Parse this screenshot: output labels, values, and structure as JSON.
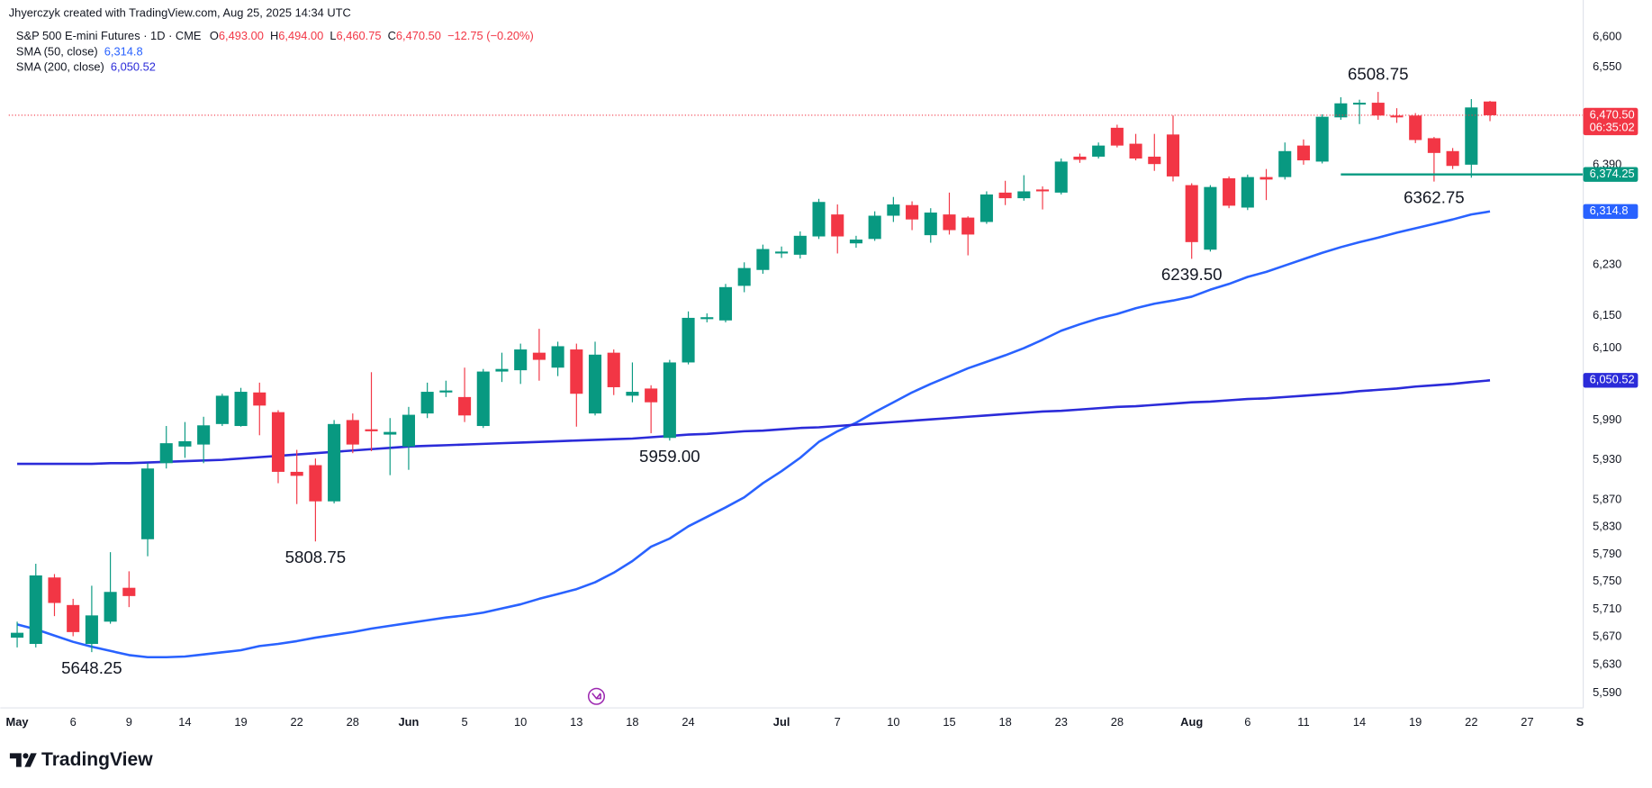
{
  "header": {
    "credit": "Jhyerczyk created with TradingView.com, Aug 25, 2025 14:34 UTC",
    "symbol": "S&P 500 E-mini Futures · 1D · CME",
    "ohlc": [
      {
        "key": "O",
        "value": "6,493.00"
      },
      {
        "key": "H",
        "value": "6,494.00"
      },
      {
        "key": "L",
        "value": "6,460.75"
      },
      {
        "key": "C",
        "value": "6,470.50"
      }
    ],
    "change": "−12.75 (−0.20%)"
  },
  "chart_data": {
    "type": "candlestick",
    "log": true,
    "grid": false,
    "up_color": "#089981",
    "down_color": "#f23645",
    "xlim": [
      -0.45,
      84
    ],
    "ylim": [
      5572,
      6662
    ],
    "xticks": [
      {
        "value": 0,
        "label": "May"
      },
      {
        "value": 3,
        "label": "6"
      },
      {
        "value": 6,
        "label": "9"
      },
      {
        "value": 9,
        "label": "14"
      },
      {
        "value": 12,
        "label": "19"
      },
      {
        "value": 15,
        "label": "22"
      },
      {
        "value": 18,
        "label": "28"
      },
      {
        "value": 21,
        "label": "Jun"
      },
      {
        "value": 24,
        "label": "5"
      },
      {
        "value": 27,
        "label": "10"
      },
      {
        "value": 30,
        "label": "13"
      },
      {
        "value": 33,
        "label": "18"
      },
      {
        "value": 36,
        "label": "24"
      },
      {
        "value": 41,
        "label": "Jul"
      },
      {
        "value": 44,
        "label": "7"
      },
      {
        "value": 47,
        "label": "10"
      },
      {
        "value": 50,
        "label": "15"
      },
      {
        "value": 53,
        "label": "18"
      },
      {
        "value": 56,
        "label": "23"
      },
      {
        "value": 59,
        "label": "28"
      },
      {
        "value": 63,
        "label": "Aug"
      },
      {
        "value": 66,
        "label": "6"
      },
      {
        "value": 69,
        "label": "11"
      },
      {
        "value": 72,
        "label": "14"
      },
      {
        "value": 75,
        "label": "19"
      },
      {
        "value": 78,
        "label": "22"
      },
      {
        "value": 81,
        "label": "27"
      },
      {
        "value": 84,
        "label": "Se"
      }
    ],
    "yticks": [
      {
        "value": 6600,
        "label": "6,600"
      },
      {
        "value": 6550,
        "label": "6,550"
      },
      {
        "value": 6390,
        "label": "6,390"
      },
      {
        "value": 6230,
        "label": "6,230"
      },
      {
        "value": 6150,
        "label": "6,150"
      },
      {
        "value": 6100,
        "label": "6,100"
      },
      {
        "value": 5990,
        "label": "5,990"
      },
      {
        "value": 5930,
        "label": "5,930"
      },
      {
        "value": 5870,
        "label": "5,870"
      },
      {
        "value": 5830,
        "label": "5,830"
      },
      {
        "value": 5790,
        "label": "5,790"
      },
      {
        "value": 5750,
        "label": "5,750"
      },
      {
        "value": 5710,
        "label": "5,710"
      },
      {
        "value": 5670,
        "label": "5,670"
      },
      {
        "value": 5630,
        "label": "5,630"
      },
      {
        "value": 5590,
        "label": "5,590"
      }
    ],
    "open": [
      5669,
      5660,
      5756,
      5716,
      5660,
      5692,
      5741,
      5812,
      5925,
      5950,
      5953,
      5984,
      5981,
      6032,
      6002,
      5912,
      5922,
      5868,
      5990,
      5976,
      5968,
      5950,
      6000,
      6032,
      6025,
      5981,
      6064,
      6066,
      6093,
      6070,
      6098,
      6000,
      6093,
      6027,
      6038,
      5963,
      6078,
      6145,
      6143,
      6197,
      6222,
      6248,
      6246,
      6275,
      6310,
      6264,
      6271,
      6308,
      6325,
      6277,
      6310,
      6305,
      6298,
      6345,
      6336,
      6350,
      6345,
      6403,
      6403,
      6450,
      6424,
      6403,
      6439,
      6357,
      6254,
      6368,
      6321,
      6370,
      6370,
      6421,
      6395,
      6467,
      6488,
      6491,
      6470,
      6470,
      6433,
      6412,
      6390,
      6493
    ],
    "high": [
      5692,
      5776,
      5761,
      5725,
      5744,
      5793,
      5765,
      5925,
      5981,
      5987,
      5995,
      6030,
      6039,
      6047,
      6005,
      5945,
      5932,
      5990,
      6000,
      6063,
      5993,
      6010,
      6047,
      6050,
      6070,
      6068,
      6093,
      6107,
      6130,
      6110,
      6107,
      6110,
      6098,
      6078,
      6043,
      6082,
      6157,
      6154,
      6200,
      6234,
      6262,
      6259,
      6283,
      6335,
      6326,
      6276,
      6315,
      6338,
      6331,
      6320,
      6345,
      6307,
      6347,
      6364,
      6373,
      6355,
      6400,
      6408,
      6426,
      6455,
      6440,
      6440,
      6470,
      6360,
      6357,
      6371,
      6374,
      6383,
      6426,
      6431,
      6472,
      6500,
      6496,
      6508.75,
      6482,
      6474,
      6435,
      6417,
      6497,
      6494
    ],
    "low": [
      5655,
      5655,
      5700,
      5671,
      5648.25,
      5689,
      5713,
      5787,
      5917,
      5933,
      5925,
      5981,
      5980,
      5967,
      5895,
      5864,
      5808.75,
      5865,
      5940,
      5943,
      5907,
      5915,
      5993,
      6025,
      5987,
      5978,
      6048,
      6045,
      6050,
      6057,
      5980,
      5997,
      6028,
      6017,
      5970,
      5959,
      6075,
      6140,
      6140,
      6187,
      6216,
      6241,
      6240,
      6271,
      6248,
      6257,
      6268,
      6298,
      6285,
      6265,
      6278,
      6245,
      6295,
      6325,
      6332,
      6318,
      6342,
      6393,
      6400,
      6418,
      6397,
      6380,
      6363,
      6239.5,
      6251,
      6320,
      6317,
      6333,
      6366,
      6390,
      6392,
      6463,
      6456,
      6463,
      6458,
      6425,
      6362.75,
      6383,
      6369,
      6460.75
    ],
    "close": [
      5676,
      5759,
      5719,
      5677,
      5701,
      5735,
      5729,
      5917,
      5955,
      5958,
      5982,
      6027,
      6033,
      6012,
      5912,
      5906,
      5868,
      5984,
      5953,
      5973,
      5972,
      5998,
      6033,
      6035,
      5997,
      6064,
      6068,
      6098,
      6082,
      6103,
      6030,
      6090,
      6040,
      6033,
      6017,
      6078,
      6147,
      6148,
      6195,
      6225,
      6255,
      6251,
      6276,
      6330,
      6275,
      6270,
      6308,
      6326,
      6302,
      6313,
      6285,
      6278,
      6342,
      6336,
      6347,
      6347,
      6395,
      6398,
      6421,
      6421,
      6400,
      6391,
      6371,
      6266,
      6354,
      6324,
      6370,
      6366,
      6412,
      6397,
      6468,
      6490,
      6491,
      6470,
      6467,
      6430,
      6409,
      6388,
      6483.25,
      6470.5
    ],
    "series": [
      {
        "name": "SMA (50, close)",
        "color": "#2962ff",
        "last_label": "6,314.8",
        "values": [
          5688,
          5681,
          5672,
          5663,
          5656,
          5650,
          5644,
          5641,
          5641,
          5642,
          5645,
          5648,
          5651,
          5657,
          5660,
          5664,
          5669,
          5673,
          5677,
          5682,
          5686,
          5690,
          5694,
          5698,
          5701,
          5705,
          5711,
          5717,
          5725,
          5732,
          5739,
          5749,
          5763,
          5780,
          5801,
          5813,
          5831,
          5845,
          5859,
          5874,
          5895,
          5913,
          5933,
          5957,
          5973,
          5986,
          6002,
          6017,
          6032,
          6045,
          6057,
          6069,
          6079,
          6089,
          6100,
          6113,
          6127,
          6137,
          6146,
          6153,
          6162,
          6169,
          6174,
          6180,
          6191,
          6200,
          6211,
          6219,
          6229,
          6239,
          6249,
          6258,
          6266,
          6273,
          6281,
          6288,
          6295,
          6302,
          6310,
          6314.8
        ]
      },
      {
        "name": "SMA (200, close)",
        "color": "#2b2bd9",
        "last_label": "6,050.52",
        "values": [
          5924,
          5924,
          5924,
          5924,
          5924,
          5925,
          5925,
          5926,
          5927,
          5928,
          5929,
          5930,
          5932,
          5934,
          5936,
          5938,
          5940,
          5942,
          5944,
          5946,
          5948,
          5950,
          5951,
          5952,
          5953,
          5954,
          5955,
          5956,
          5957,
          5958,
          5959,
          5960,
          5961,
          5962,
          5964,
          5966,
          5968,
          5969,
          5971,
          5973,
          5974,
          5976,
          5978,
          5979,
          5981,
          5983,
          5985,
          5987,
          5989,
          5991,
          5993,
          5995,
          5997,
          5999,
          6001,
          6003,
          6004,
          6006,
          6008,
          6010,
          6011,
          6013,
          6015,
          6017,
          6018,
          6020,
          6022,
          6023,
          6025,
          6027,
          6029,
          6031,
          6034,
          6036,
          6038,
          6041,
          6043,
          6045,
          6048,
          6050.52
        ]
      }
    ],
    "price_lines": [
      {
        "value": 6470.5,
        "label": "6,470.50",
        "countdown": "06:35:02",
        "color": "#f23645",
        "style": "dotted"
      },
      {
        "value": 6374.25,
        "label": "6,374.25",
        "color": "#089981",
        "style": "solid",
        "from": 71
      }
    ],
    "annotations": [
      {
        "text": "6508.75",
        "x": 73,
        "y": 6508.75,
        "position": "above"
      },
      {
        "text": "6362.75",
        "x": 76,
        "y": 6362.75,
        "position": "below"
      },
      {
        "text": "6239.50",
        "x": 63,
        "y": 6239.5,
        "position": "below"
      },
      {
        "text": "5959.00",
        "x": 35,
        "y": 5959,
        "position": "below"
      },
      {
        "text": "5808.75",
        "x": 16,
        "y": 5808.75,
        "position": "below"
      },
      {
        "text": "5648.25",
        "x": 4,
        "y": 5648.25,
        "position": "below"
      }
    ]
  },
  "footer": {
    "brand": "TradingView"
  }
}
